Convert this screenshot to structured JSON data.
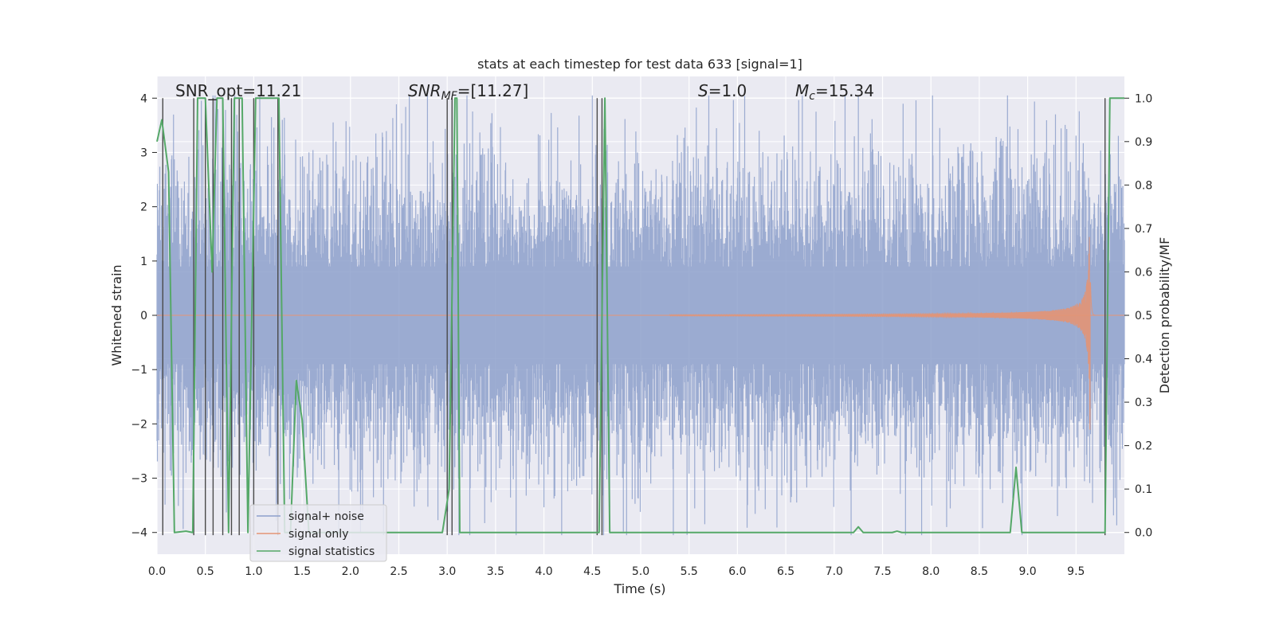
{
  "chart_data": {
    "type": "line",
    "title": "stats at each timestep for test data 633 [signal=1]",
    "xlabel": "Time (s)",
    "ylabel": "Whitened strain",
    "y2label": "Detection probability/MF",
    "xlim": [
      0,
      10
    ],
    "ylim": [
      -4.4,
      4.4
    ],
    "y2lim": [
      -0.05,
      1.05
    ],
    "xticks": [
      0.0,
      0.5,
      1.0,
      1.5,
      2.0,
      2.5,
      3.0,
      3.5,
      4.0,
      4.5,
      5.0,
      5.5,
      6.0,
      6.5,
      7.0,
      7.5,
      8.0,
      8.5,
      9.0,
      9.5
    ],
    "xtick_labels": [
      "0.0",
      "0.5",
      "1.0",
      "1.5",
      "2.0",
      "2.5",
      "3.0",
      "3.5",
      "4.0",
      "4.5",
      "5.0",
      "5.5",
      "6.0",
      "6.5",
      "7.0",
      "7.5",
      "8.0",
      "8.5",
      "9.0",
      "9.5"
    ],
    "yticks": [
      -4,
      -3,
      -2,
      -1,
      0,
      1,
      2,
      3,
      4
    ],
    "ytick_labels": [
      "−4",
      "−3",
      "−2",
      "−1",
      "0",
      "1",
      "2",
      "3",
      "4"
    ],
    "y2ticks": [
      0.0,
      0.1,
      0.2,
      0.3,
      0.4,
      0.5,
      0.6,
      0.7,
      0.8,
      0.9,
      1.0
    ],
    "y2tick_labels": [
      "0.0",
      "0.1",
      "0.2",
      "0.3",
      "0.4",
      "0.5",
      "0.6",
      "0.7",
      "0.8",
      "0.9",
      "1.0"
    ],
    "grid": true,
    "legend_position": "lower-left",
    "annotations": {
      "snr_opt": "SNR_opt=11.21",
      "snr_mf_main": "SNR",
      "snr_mf_sub": "MF",
      "snr_mf_value": "=[11.27]",
      "s_main": "S",
      "s_value": "=1.0",
      "mc_main": "M",
      "mc_sub": "c",
      "mc_value": "=15.34"
    },
    "series": [
      {
        "name": "signal+ noise",
        "color": "#8da0cb",
        "style": "noise band, approx. amplitude ±1.6 with peaks to ±3.5, 10 s at 4096 Hz"
      },
      {
        "name": "signal only",
        "color": "#e39474",
        "style": "chirp",
        "chirp": {
          "start_t": 5.3,
          "merger_t": 9.65,
          "end_t": 9.7,
          "peak_amplitude": 2.1
        }
      },
      {
        "name": "signal statistics",
        "color": "#55a868",
        "axis": "right",
        "points": [
          [
            0.0,
            0.9
          ],
          [
            0.05,
            0.95
          ],
          [
            0.12,
            0.83
          ],
          [
            0.18,
            0.0
          ],
          [
            0.3,
            0.003
          ],
          [
            0.37,
            0.0
          ],
          [
            0.42,
            1.0
          ],
          [
            0.5,
            1.0
          ],
          [
            0.57,
            0.6
          ],
          [
            0.62,
            1.0
          ],
          [
            0.68,
            1.0
          ],
          [
            0.74,
            0.0
          ],
          [
            0.8,
            1.0
          ],
          [
            0.88,
            1.0
          ],
          [
            0.94,
            0.0
          ],
          [
            1.02,
            1.0
          ],
          [
            1.08,
            1.0
          ],
          [
            1.26,
            1.0
          ],
          [
            1.32,
            0.0
          ],
          [
            1.38,
            0.0
          ],
          [
            1.44,
            0.35
          ],
          [
            1.5,
            0.26
          ],
          [
            1.57,
            0.0
          ],
          [
            2.95,
            0.0
          ],
          [
            3.02,
            0.1
          ],
          [
            3.08,
            1.0
          ],
          [
            3.1,
            1.0
          ],
          [
            3.13,
            0.0
          ],
          [
            4.57,
            0.0
          ],
          [
            4.6,
            0.5
          ],
          [
            4.63,
            1.0
          ],
          [
            4.68,
            0.0
          ],
          [
            7.2,
            0.0
          ],
          [
            7.25,
            0.013
          ],
          [
            7.3,
            0.0
          ],
          [
            7.6,
            0.0
          ],
          [
            7.65,
            0.003
          ],
          [
            7.7,
            0.0
          ],
          [
            8.82,
            0.0
          ],
          [
            8.88,
            0.15
          ],
          [
            8.94,
            0.0
          ],
          [
            9.8,
            0.0
          ],
          [
            9.85,
            1.0
          ],
          [
            10.0,
            1.0
          ]
        ]
      }
    ],
    "vlines": {
      "color": "#4a4a4a",
      "y_range": [
        -4.05,
        4.0
      ],
      "x": [
        0.06,
        0.38,
        0.5,
        0.58,
        0.68,
        0.77,
        0.85,
        1.0,
        1.25,
        3.0,
        3.05,
        4.55,
        4.6,
        9.8
      ]
    }
  }
}
